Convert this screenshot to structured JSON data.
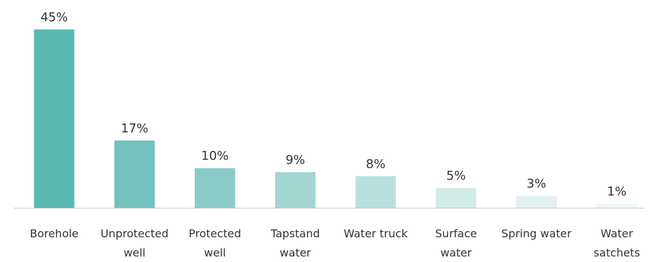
{
  "chart_data": {
    "type": "bar",
    "title": "",
    "xlabel": "",
    "ylabel": "",
    "ylim": [
      0,
      45
    ],
    "grid": false,
    "legend": "none",
    "categories": [
      "Borehole",
      "Unprotected well",
      "Protected well",
      "Tapstand water",
      "Water truck",
      "Surface water",
      "Spring water",
      "Water satchets"
    ],
    "category_label_lines": [
      [
        "Borehole"
      ],
      [
        "Unprotected",
        "well"
      ],
      [
        "Protected",
        "well"
      ],
      [
        "Tapstand",
        "water"
      ],
      [
        "Water truck"
      ],
      [
        "Surface",
        "water"
      ],
      [
        "Spring water"
      ],
      [
        "Water",
        "satchets"
      ]
    ],
    "values": [
      45,
      17,
      10,
      9,
      8,
      5,
      3,
      1
    ],
    "value_labels": [
      "45%",
      "17%",
      "10%",
      "9%",
      "8%",
      "5%",
      "3%",
      "1%"
    ],
    "bar_colors": [
      "#5bb8b2",
      "#72c1bc",
      "#8bcbc7",
      "#a3d5d2",
      "#bae0de",
      "#d0eae8",
      "#e1f1f0",
      "#eef7f6"
    ],
    "axis_color": "#c8c8c8",
    "text_color": "#333333"
  }
}
